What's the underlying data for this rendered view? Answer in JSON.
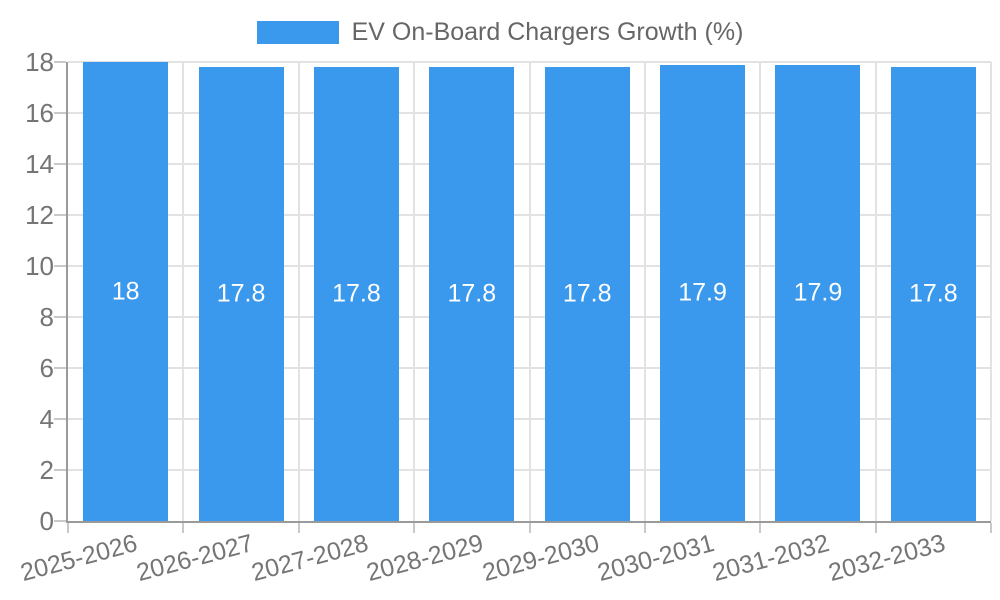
{
  "legend": {
    "series_label": "EV On-Board Chargers Growth (%)"
  },
  "chart_data": {
    "type": "bar",
    "title": "EV On-Board Chargers Growth (%)",
    "categories": [
      "2025-2026",
      "2026-2027",
      "2027-2028",
      "2028-2029",
      "2029-2030",
      "2030-2031",
      "2031-2032",
      "2032-2033"
    ],
    "values": [
      18,
      17.8,
      17.8,
      17.8,
      17.8,
      17.9,
      17.9,
      17.8
    ],
    "xlabel": "",
    "ylabel": "",
    "ylim": [
      0,
      18
    ],
    "ytick_step": 2,
    "grid": true,
    "legend_position": "top",
    "bar_color": "#3a99ec",
    "value_label_color": "#ffffff"
  }
}
